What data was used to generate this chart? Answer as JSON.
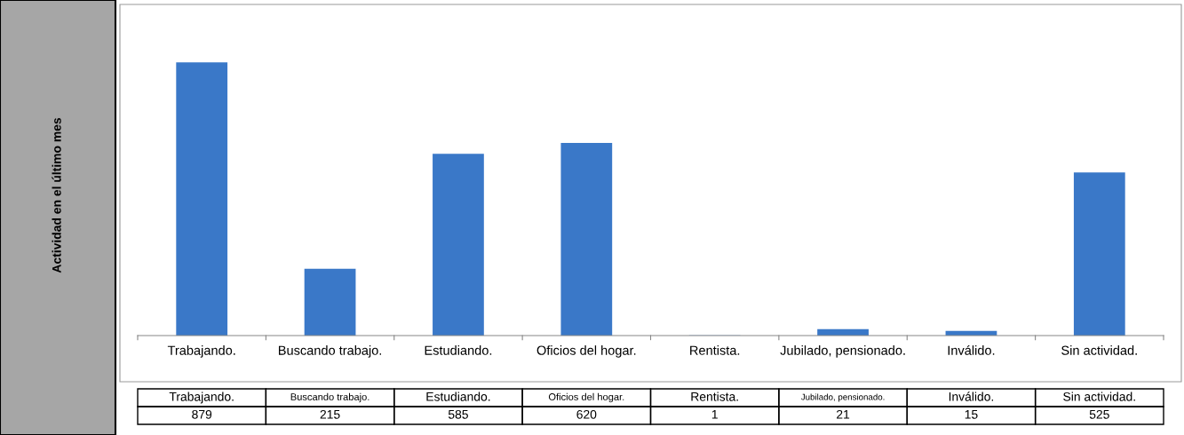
{
  "chart_data": {
    "type": "bar",
    "categories": [
      "Trabajando.",
      "Buscando trabajo.",
      "Estudiando.",
      "Oficios del hogar.",
      "Rentista.",
      "Jubilado, pensionado.",
      "Inválido.",
      "Sin actividad."
    ],
    "values": [
      879,
      215,
      585,
      620,
      1,
      21,
      15,
      525
    ],
    "color": "#3a78c8",
    "data_labels": true,
    "grid": false,
    "annotations": [
      "Actividad en el último mes"
    ]
  }
}
